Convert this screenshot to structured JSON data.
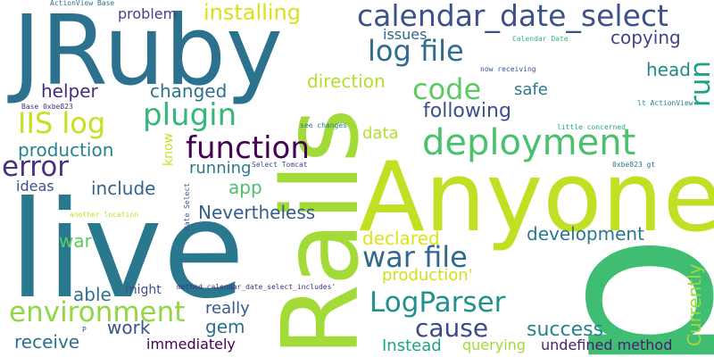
{
  "words": [
    {
      "text": "p",
      "color": "#3fbd73"
    },
    {
      "text": "Anyone",
      "color": "#c2df23"
    },
    {
      "text": "live",
      "color": "#2a788e"
    },
    {
      "text": "JRuby",
      "color": "#2c728e"
    },
    {
      "text": "Rails",
      "color": "#a2da37"
    },
    {
      "text": "calendar_date_select",
      "color": "#3b528b"
    },
    {
      "text": "deployment",
      "color": "#4ac16d"
    },
    {
      "text": "function",
      "color": "#440154"
    },
    {
      "text": "log file",
      "color": "#2f6c8e"
    },
    {
      "text": "plugin",
      "color": "#35b779"
    },
    {
      "text": "code",
      "color": "#5ec962"
    },
    {
      "text": "error",
      "color": "#46327e"
    },
    {
      "text": "IIS log",
      "color": "#c8e020"
    },
    {
      "text": "war file",
      "color": "#31688e"
    },
    {
      "text": "environment",
      "color": "#90d743"
    },
    {
      "text": "LogParser",
      "color": "#21918c"
    },
    {
      "text": "cause",
      "color": "#3e4989"
    },
    {
      "text": "installing",
      "color": "#d8e219"
    },
    {
      "text": "run",
      "color": "#1fa187"
    },
    {
      "text": "Nevertheless",
      "color": "#365c8d"
    },
    {
      "text": "helper",
      "color": "#472d7b"
    },
    {
      "text": "changed",
      "color": "#2d718e"
    },
    {
      "text": "following",
      "color": "#3b528b"
    },
    {
      "text": "production",
      "color": "#26828e"
    },
    {
      "text": "include",
      "color": "#33638d"
    },
    {
      "text": "copying",
      "color": "#414487"
    },
    {
      "text": "head",
      "color": "#23888e"
    },
    {
      "text": "safe",
      "color": "#2a788e"
    },
    {
      "text": "direction",
      "color": "#b5de2b"
    },
    {
      "text": "issues",
      "color": "#31688e"
    },
    {
      "text": "problem",
      "color": "#414487"
    },
    {
      "text": "declared",
      "color": "#dde318"
    },
    {
      "text": "development",
      "color": "#2a788e"
    },
    {
      "text": "receive",
      "color": "#2d708e"
    },
    {
      "text": "work",
      "color": "#3b528b"
    },
    {
      "text": "success",
      "color": "#25848e"
    },
    {
      "text": "Instead",
      "color": "#20a486"
    },
    {
      "text": "gem",
      "color": "#2e6e8e"
    },
    {
      "text": "really",
      "color": "#38598c"
    },
    {
      "text": "able",
      "color": "#2d708e"
    },
    {
      "text": "production'",
      "color": "#d0e11c"
    },
    {
      "text": "Currently",
      "color": "#9fda3a"
    },
    {
      "text": "running",
      "color": "#2a788e"
    },
    {
      "text": "app",
      "color": "#4ac16d"
    },
    {
      "text": "war",
      "color": "#5ec962"
    },
    {
      "text": "ideas",
      "color": "#3b528b"
    },
    {
      "text": "data",
      "color": "#b5de2b"
    },
    {
      "text": "know",
      "color": "#c8e020"
    },
    {
      "text": "might",
      "color": "#3b528b"
    },
    {
      "text": "immediately",
      "color": "#440154"
    },
    {
      "text": "querying",
      "color": "#a0da39"
    },
    {
      "text": "undefined method",
      "color": "#481f70"
    },
    {
      "text": "ActionView Base",
      "color": "#2c728e"
    },
    {
      "text": "Calendar Date",
      "color": "#35b779"
    },
    {
      "text": "now receiving",
      "color": "#3b528b"
    },
    {
      "text": "lt ActionView",
      "color": "#26828e"
    },
    {
      "text": "Base 0xbe823",
      "color": "#46327e"
    },
    {
      "text": "little concerned",
      "color": "#22a884"
    },
    {
      "text": "see changes",
      "color": "#2a788e"
    },
    {
      "text": "Select Tomcat",
      "color": "#3e4989"
    },
    {
      "text": "0xbe823 gt",
      "color": "#2c728e"
    },
    {
      "text": "Date Select",
      "color": "#3b528b"
    },
    {
      "text": "another location",
      "color": "#c2df23"
    },
    {
      "text": "method calendar_date_select_includes'",
      "color": "#472d7b"
    },
    {
      "text": "P",
      "color": "#3b528b"
    }
  ]
}
